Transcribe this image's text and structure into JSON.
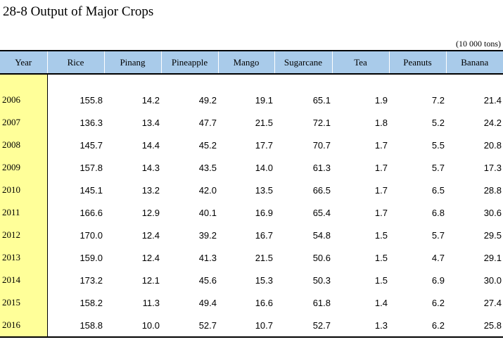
{
  "table_title": "28-8  Output of Major Crops",
  "unit_note": "(10 000 tons)",
  "columns": [
    "Year",
    "Rice",
    "Pinang",
    "Pineapple",
    "Mango",
    "Sugarcane",
    "Tea",
    "Peanuts",
    "Banana"
  ],
  "rows": [
    [
      "2006",
      "155.8",
      "14.2",
      "49.2",
      "19.1",
      "65.1",
      "1.9",
      "7.2",
      "21.4"
    ],
    [
      "2007",
      "136.3",
      "13.4",
      "47.7",
      "21.5",
      "72.1",
      "1.8",
      "5.2",
      "24.2"
    ],
    [
      "2008",
      "145.7",
      "14.4",
      "45.2",
      "17.7",
      "70.7",
      "1.7",
      "5.5",
      "20.8"
    ],
    [
      "2009",
      "157.8",
      "14.3",
      "43.5",
      "14.0",
      "61.3",
      "1.7",
      "5.7",
      "17.3"
    ],
    [
      "2010",
      "145.1",
      "13.2",
      "42.0",
      "13.5",
      "66.5",
      "1.7",
      "6.5",
      "28.8"
    ],
    [
      "2011",
      "166.6",
      "12.9",
      "40.1",
      "16.9",
      "65.4",
      "1.7",
      "6.8",
      "30.6"
    ],
    [
      "2012",
      "170.0",
      "12.4",
      "39.2",
      "16.7",
      "54.8",
      "1.5",
      "5.7",
      "29.5"
    ],
    [
      "2013",
      "159.0",
      "12.4",
      "41.3",
      "21.5",
      "50.6",
      "1.5",
      "4.7",
      "29.1"
    ],
    [
      "2014",
      "173.2",
      "12.1",
      "45.6",
      "15.3",
      "50.3",
      "1.5",
      "6.9",
      "30.0"
    ],
    [
      "2015",
      "158.2",
      "11.3",
      "49.4",
      "16.6",
      "61.8",
      "1.4",
      "6.2",
      "27.4"
    ],
    [
      "2016",
      "158.8",
      "10.0",
      "52.7",
      "10.7",
      "52.7",
      "1.3",
      "6.2",
      "25.8"
    ]
  ],
  "colors": {
    "header_bg": "#a9cbea",
    "year_col_bg": "#ffff99"
  }
}
